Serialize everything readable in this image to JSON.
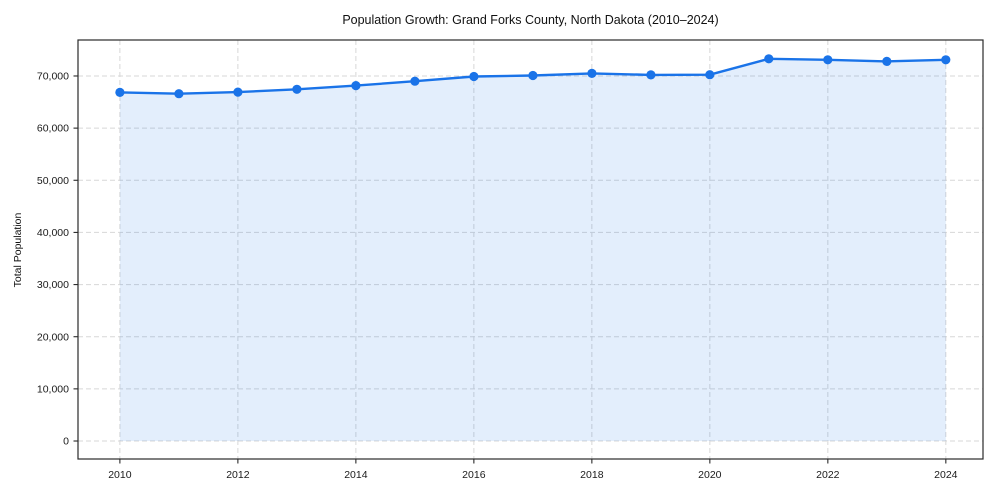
{
  "chart_data": {
    "type": "area",
    "title": "Population Growth: Grand Forks County, North Dakota (2010–2024)",
    "xlabel": "",
    "ylabel": "Total Population",
    "x": [
      2010,
      2011,
      2012,
      2013,
      2014,
      2015,
      2016,
      2017,
      2018,
      2019,
      2020,
      2021,
      2022,
      2023,
      2024
    ],
    "values": [
      66850,
      66600,
      66900,
      67450,
      68150,
      69000,
      69900,
      70100,
      70500,
      70200,
      70250,
      73300,
      73100,
      72800,
      73100
    ],
    "series_name": "Total Population",
    "x_tick_labels": [
      "2010",
      "2012",
      "2014",
      "2016",
      "2018",
      "2020",
      "2022",
      "2024"
    ],
    "x_tick_values": [
      2010,
      2012,
      2014,
      2016,
      2018,
      2020,
      2022,
      2024
    ],
    "y_tick_labels": [
      "0",
      "10,000",
      "20,000",
      "30,000",
      "40,000",
      "50,000",
      "60,000",
      "70,000"
    ],
    "y_tick_values": [
      0,
      10000,
      20000,
      30000,
      40000,
      50000,
      60000,
      70000
    ],
    "xlim": [
      2009.29,
      2024.63
    ],
    "ylim": [
      -3450,
      76900
    ],
    "grid": true,
    "grid_style": "dashed",
    "legend": null,
    "colors": {
      "line": "#1a73e8",
      "marker": "#1a73e8",
      "fill": "#1a73e8",
      "fill_opacity": 0.12,
      "grid": "#d7d7d7",
      "spine": "#2a2a2a",
      "tick_text": "#1a1a1a",
      "background": "#ffffff"
    }
  }
}
